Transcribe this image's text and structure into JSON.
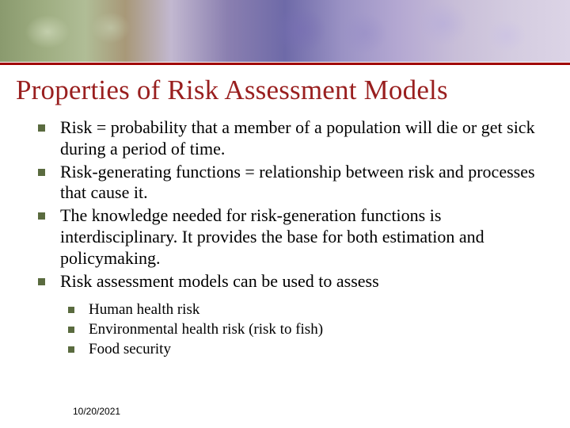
{
  "slide": {
    "title": "Properties of Risk Assessment Models",
    "bullets": [
      "Risk = probability that a member of a population will die or get sick during a period of time.",
      "Risk-generating functions = relationship between risk and processes that cause it.",
      "The knowledge needed for risk-generation functions is interdisciplinary.  It provides the base for both estimation and policymaking.",
      "Risk assessment models can be used to assess"
    ],
    "subBullets": [
      "Human health risk",
      "Environmental health risk (risk to fish)",
      "Food security"
    ],
    "date": "10/20/2021",
    "colors": {
      "title": "#991f1f",
      "bulletSquare": "#5a6b3f",
      "text": "#000000",
      "background": "#ffffff"
    },
    "typography": {
      "title_fontsize": 35,
      "bullet_fontsize": 22,
      "sub_bullet_fontsize": 19,
      "date_fontsize": 12,
      "title_font": "Times New Roman",
      "body_font": "Times New Roman",
      "date_font": "Arial"
    }
  }
}
